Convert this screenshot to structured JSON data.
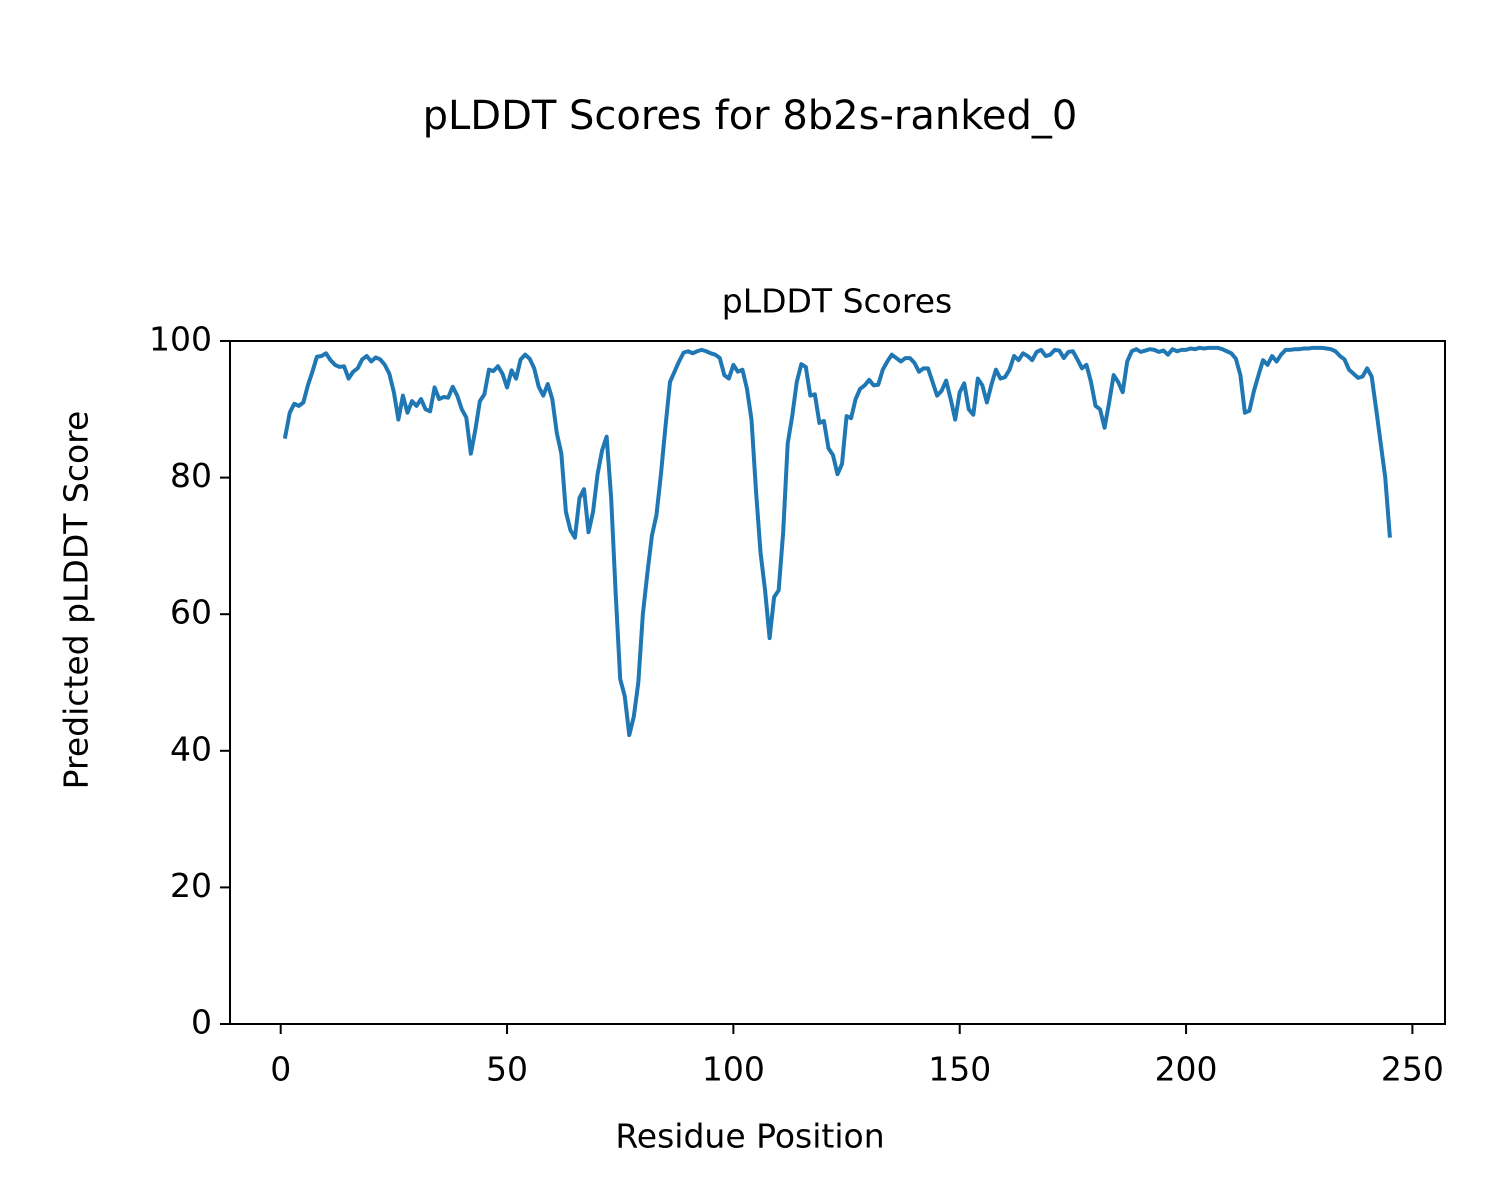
{
  "chart_data": {
    "type": "line",
    "title": "pLDDT Scores for 8b2s-ranked_0",
    "subtitle": "pLDDT Scores",
    "x_label": "Residue Position",
    "y_label": "Predicted pLDDT Score",
    "x": [
      1,
      2,
      3,
      4,
      5,
      6,
      7,
      8,
      9,
      10,
      11,
      12,
      13,
      14,
      15,
      16,
      17,
      18,
      19,
      20,
      21,
      22,
      23,
      24,
      25,
      26,
      27,
      28,
      29,
      30,
      31,
      32,
      33,
      34,
      35,
      36,
      37,
      38,
      39,
      40,
      41,
      42,
      43,
      44,
      45,
      46,
      47,
      48,
      49,
      50,
      51,
      52,
      53,
      54,
      55,
      56,
      57,
      58,
      59,
      60,
      61,
      62,
      63,
      64,
      65,
      66,
      67,
      68,
      69,
      70,
      71,
      72,
      73,
      74,
      75,
      76,
      77,
      78,
      79,
      80,
      81,
      82,
      83,
      84,
      85,
      86,
      87,
      88,
      89,
      90,
      91,
      92,
      93,
      94,
      95,
      96,
      97,
      98,
      99,
      100,
      101,
      102,
      103,
      104,
      105,
      106,
      107,
      108,
      109,
      110,
      111,
      112,
      113,
      114,
      115,
      116,
      117,
      118,
      119,
      120,
      121,
      122,
      123,
      124,
      125,
      126,
      127,
      128,
      129,
      130,
      131,
      132,
      133,
      134,
      135,
      136,
      137,
      138,
      139,
      140,
      141,
      142,
      143,
      144,
      145,
      146,
      147,
      148,
      149,
      150,
      151,
      152,
      153,
      154,
      155,
      156,
      157,
      158,
      159,
      160,
      161,
      162,
      163,
      164,
      165,
      166,
      167,
      168,
      169,
      170,
      171,
      172,
      173,
      174,
      175,
      176,
      177,
      178,
      179,
      180,
      181,
      182,
      183,
      184,
      185,
      186,
      187,
      188,
      189,
      190,
      191,
      192,
      193,
      194,
      195,
      196,
      197,
      198,
      199,
      200,
      201,
      202,
      203,
      204,
      205,
      206,
      207,
      208,
      209,
      210,
      211,
      212,
      213,
      214,
      215,
      216,
      217,
      218,
      219,
      220,
      221,
      222,
      223,
      224,
      225,
      226,
      227,
      228,
      229,
      230,
      231,
      232,
      233,
      234,
      235,
      236,
      237,
      238,
      239,
      240,
      241,
      242,
      243,
      244,
      245
    ],
    "series": [
      {
        "color": "#1f77b4",
        "values": [
          86,
          89.5,
          90.8,
          90.5,
          91,
          93.5,
          95.5,
          97.7,
          97.8,
          98.2,
          97.2,
          96.5,
          96.2,
          96.3,
          94.5,
          95.5,
          96,
          97.3,
          97.8,
          97,
          97.6,
          97.3,
          96.5,
          95.2,
          92.5,
          88.5,
          92,
          89.5,
          91.2,
          90.5,
          91.5,
          90,
          89.7,
          93.2,
          91.5,
          91.8,
          91.7,
          93.3,
          92,
          90,
          88.8,
          83.5,
          87,
          91.2,
          92.2,
          95.8,
          95.6,
          96.3,
          95.2,
          93.2,
          95.7,
          94.5,
          97.3,
          98,
          97.4,
          96,
          93.3,
          92,
          93.7,
          91.5,
          86.5,
          83.5,
          75,
          72.3,
          71.2,
          77,
          78.3,
          72,
          75,
          80.5,
          84,
          86,
          77,
          63,
          50.5,
          48,
          42.3,
          45,
          50,
          60,
          66,
          71.5,
          74.5,
          80.5,
          87.5,
          94,
          95.5,
          97,
          98.3,
          98.5,
          98.2,
          98.5,
          98.7,
          98.5,
          98.2,
          98,
          97.5,
          95,
          94.5,
          96.5,
          95.5,
          95.8,
          93,
          88.5,
          78,
          69,
          63.5,
          56.5,
          62.5,
          63.5,
          72,
          85,
          89,
          94,
          96.6,
          96.2,
          92,
          92.2,
          88,
          88.3,
          84.3,
          83.3,
          80.5,
          82,
          89,
          88.7,
          91.5,
          93,
          93.5,
          94.3,
          93.5,
          93.6,
          95.8,
          97,
          98,
          97.5,
          97,
          97.5,
          97.5,
          96.8,
          95.5,
          96,
          96,
          94,
          92,
          92.7,
          94.2,
          91.5,
          88.5,
          92.5,
          93.8,
          90,
          89.2,
          94.5,
          93.5,
          91,
          93.6,
          95.8,
          94.5,
          94.7,
          95.8,
          97.8,
          97.2,
          98.2,
          97.8,
          97.2,
          98.4,
          98.7,
          97.8,
          98,
          98.7,
          98.6,
          97.5,
          98.4,
          98.5,
          97.3,
          96,
          96.5,
          94,
          90.5,
          90,
          87.3,
          91,
          95,
          94,
          92.5,
          97,
          98.5,
          98.8,
          98.4,
          98.6,
          98.8,
          98.7,
          98.4,
          98.6,
          98,
          98.8,
          98.5,
          98.7,
          98.7,
          98.9,
          98.8,
          99,
          98.9,
          99,
          99,
          99,
          98.8,
          98.5,
          98.2,
          97.4,
          95,
          89.5,
          89.8,
          92.7,
          95,
          97.2,
          96.5,
          97.8,
          97,
          98,
          98.7,
          98.7,
          98.8,
          98.8,
          98.9,
          98.9,
          99,
          99,
          99,
          98.9,
          98.8,
          98.5,
          97.8,
          97.3,
          95.8,
          95.2,
          94.6,
          94.8,
          96,
          94.8,
          90,
          85,
          80,
          71.5
        ]
      }
    ],
    "xlim": [
      -11.2,
      257.2
    ],
    "xticks": [
      0,
      50,
      100,
      150,
      200,
      250
    ],
    "ylim": [
      0,
      100
    ],
    "yticks": [
      0,
      20,
      40,
      60,
      80,
      100
    ]
  }
}
